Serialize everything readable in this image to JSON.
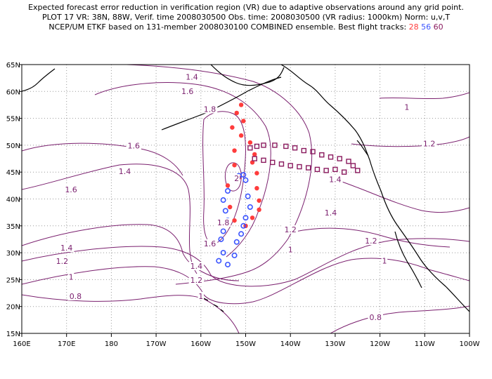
{
  "title": {
    "line1": "Expected forecast error reduction in verification region (VR) due to adaptive observations around any grid point.",
    "line2": "PLOT 17 VR: 38N, 88W, Verif. time 2008030500 Obs. time: 2008030500 (VR radius: 1000km) Norm: u,v,T",
    "line3_prefix": "NCEP/UM ETKF based on 131-member 2008030100 COMBINED ensemble.  Best flight tracks:",
    "track_a": "28",
    "track_b": "56",
    "track_c": "60"
  },
  "map": {
    "lon_labels": [
      "160E",
      "170E",
      "180",
      "170W",
      "160W",
      "150W",
      "140W",
      "130W",
      "120W",
      "110W",
      "100W"
    ],
    "lat_labels": [
      "15N",
      "20N",
      "25N",
      "30N",
      "35N",
      "40N",
      "45N",
      "50N",
      "55N",
      "60N",
      "65N"
    ],
    "lon_range": [
      160,
      260
    ],
    "lat_range": [
      15,
      65
    ],
    "grid": "dotted",
    "contour_color": "#7a1f6e",
    "contour_labels": [
      {
        "text": "1.4",
        "lon": 198,
        "lat": 62.6
      },
      {
        "text": "1.6",
        "lon": 197,
        "lat": 59.9
      },
      {
        "text": "1.8",
        "lon": 202,
        "lat": 56.6
      },
      {
        "text": "1.6",
        "lon": 185,
        "lat": 49.8
      },
      {
        "text": "1.4",
        "lon": 183,
        "lat": 45.0
      },
      {
        "text": "1.6",
        "lon": 171,
        "lat": 41.6
      },
      {
        "text": "2",
        "lon": 208,
        "lat": 43.7
      },
      {
        "text": "1.8",
        "lon": 205,
        "lat": 35.5
      },
      {
        "text": "1.6",
        "lon": 202,
        "lat": 31.6
      },
      {
        "text": "1.4",
        "lon": 170,
        "lat": 30.8
      },
      {
        "text": "1.2",
        "lon": 169,
        "lat": 28.3
      },
      {
        "text": "1",
        "lon": 171,
        "lat": 25.4
      },
      {
        "text": "0.8",
        "lon": 172,
        "lat": 21.8
      },
      {
        "text": "1.4",
        "lon": 199,
        "lat": 27.4
      },
      {
        "text": "1.2",
        "lon": 199,
        "lat": 24.8
      },
      {
        "text": "1",
        "lon": 200,
        "lat": 21.8
      },
      {
        "text": "1.2",
        "lon": 220,
        "lat": 34.2
      },
      {
        "text": "1",
        "lon": 220,
        "lat": 30.5
      },
      {
        "text": "1.4",
        "lon": 230,
        "lat": 43.5
      },
      {
        "text": "1.4",
        "lon": 229,
        "lat": 37.3
      },
      {
        "text": "1.2",
        "lon": 238,
        "lat": 32.1
      },
      {
        "text": "1",
        "lon": 241,
        "lat": 28.4
      },
      {
        "text": "1.2",
        "lon": 251,
        "lat": 50.2
      },
      {
        "text": "1",
        "lon": 246,
        "lat": 57.0
      },
      {
        "text": "0.8",
        "lon": 239,
        "lat": 17.9
      }
    ]
  },
  "tracks": [
    {
      "id": "28",
      "color": "#ff3c3c",
      "marker": "dot",
      "points": [
        [
          209.0,
          57.5
        ],
        [
          208.0,
          56.0
        ],
        [
          209.5,
          54.5
        ],
        [
          207.0,
          53.3
        ],
        [
          209.0,
          51.8
        ],
        [
          211.0,
          50.5
        ],
        [
          207.5,
          49.0
        ],
        [
          212.0,
          48.3
        ],
        [
          211.5,
          46.8
        ],
        [
          207.5,
          46.3
        ],
        [
          212.5,
          44.8
        ],
        [
          208.5,
          44.0
        ],
        [
          212.5,
          42.0
        ],
        [
          206.0,
          42.5
        ],
        [
          213.0,
          39.7
        ],
        [
          206.5,
          38.5
        ],
        [
          213.0,
          38.0
        ],
        [
          207.5,
          36.0
        ],
        [
          211.5,
          36.5
        ],
        [
          210.0,
          35.0
        ]
      ]
    },
    {
      "id": "56",
      "color": "#3c55ff",
      "marker": "circle",
      "points": [
        [
          209.5,
          44.5
        ],
        [
          208.5,
          44.3
        ],
        [
          210.0,
          43.5
        ],
        [
          206.0,
          41.5
        ],
        [
          210.5,
          40.5
        ],
        [
          205.0,
          39.8
        ],
        [
          211.0,
          38.5
        ],
        [
          205.5,
          37.8
        ],
        [
          210.0,
          36.5
        ],
        [
          206.0,
          36.0
        ],
        [
          209.5,
          35.0
        ],
        [
          205.0,
          34.0
        ],
        [
          209.0,
          33.5
        ],
        [
          204.5,
          32.5
        ],
        [
          208.0,
          32.0
        ],
        [
          205.0,
          30.0
        ],
        [
          207.5,
          29.5
        ],
        [
          206.0,
          27.8
        ],
        [
          204.0,
          28.5
        ]
      ]
    },
    {
      "id": "60",
      "color": "#8a1a5e",
      "marker": "square",
      "points": [
        [
          211.0,
          49.5
        ],
        [
          212.5,
          49.8
        ],
        [
          214.0,
          50.0
        ],
        [
          216.5,
          50.0
        ],
        [
          219.0,
          49.8
        ],
        [
          221.0,
          49.5
        ],
        [
          223.0,
          49.0
        ],
        [
          225.0,
          48.8
        ],
        [
          227.0,
          48.2
        ],
        [
          229.0,
          47.8
        ],
        [
          231.0,
          47.5
        ],
        [
          233.0,
          47.0
        ],
        [
          234.0,
          46.2
        ],
        [
          212.0,
          47.5
        ],
        [
          214.0,
          47.2
        ],
        [
          216.0,
          46.8
        ],
        [
          218.0,
          46.5
        ],
        [
          220.0,
          46.2
        ],
        [
          222.0,
          46.0
        ],
        [
          224.0,
          45.8
        ],
        [
          226.0,
          45.5
        ],
        [
          228.0,
          45.3
        ],
        [
          230.0,
          45.5
        ],
        [
          232.0,
          45.0
        ],
        [
          235.0,
          45.3
        ]
      ]
    }
  ]
}
